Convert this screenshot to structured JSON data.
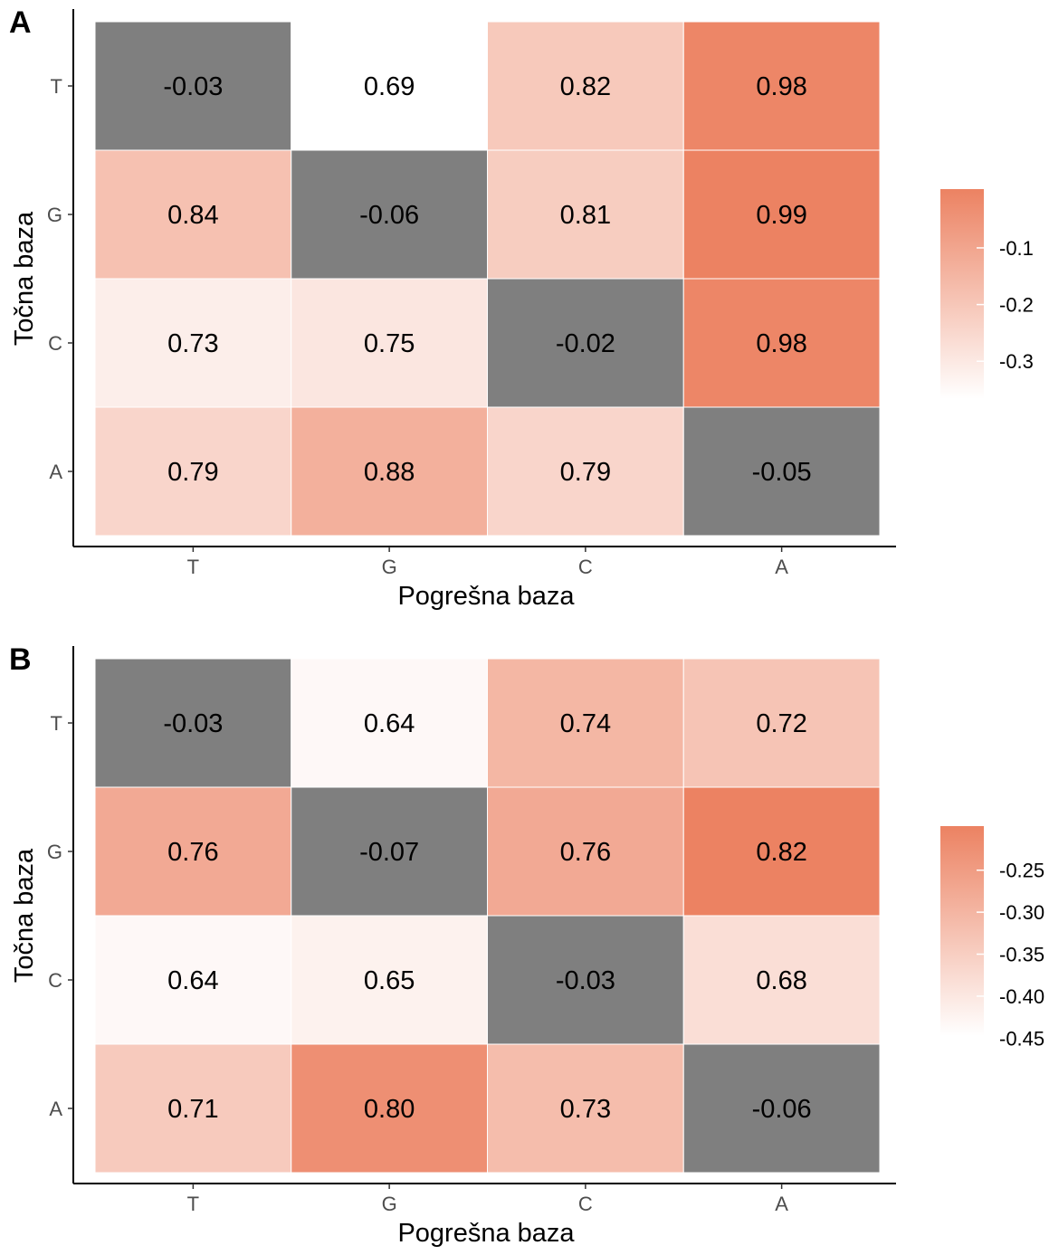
{
  "chart_data": [
    {
      "type": "heatmap",
      "panel_label": "A",
      "xlabel": "Pogrešna baza",
      "ylabel": "Točna baza",
      "x_categories": [
        "T",
        "G",
        "C",
        "A"
      ],
      "y_categories": [
        "T",
        "G",
        "C",
        "A"
      ],
      "values": [
        [
          -0.03,
          0.69,
          0.82,
          0.98
        ],
        [
          0.84,
          -0.06,
          0.81,
          0.99
        ],
        [
          0.73,
          0.75,
          -0.02,
          0.98
        ],
        [
          0.79,
          0.88,
          0.79,
          -0.05
        ]
      ],
      "value_labels": [
        [
          "-0.03",
          "0.69",
          "0.82",
          "0.98"
        ],
        [
          "0.84",
          "-0.06",
          "0.81",
          "0.99"
        ],
        [
          "0.73",
          "0.75",
          "-0.02",
          "0.98"
        ],
        [
          "0.79",
          "0.88",
          "0.79",
          "-0.05"
        ]
      ],
      "color_range": [
        0.69,
        0.99
      ],
      "negative_color": "#7f7f7f",
      "low_color": "#ffffff",
      "high_color": "#ec8262",
      "legend": {
        "position": "right",
        "ticks": [
          "-0.1",
          "-0.2",
          "-0.3"
        ],
        "tick_fractions": [
          0.72,
          0.45,
          0.18
        ]
      },
      "grid": false
    },
    {
      "type": "heatmap",
      "panel_label": "B",
      "xlabel": "Pogrešna baza",
      "ylabel": "Točna baza",
      "x_categories": [
        "T",
        "G",
        "C",
        "A"
      ],
      "y_categories": [
        "T",
        "G",
        "C",
        "A"
      ],
      "values": [
        [
          -0.03,
          0.64,
          0.74,
          0.72
        ],
        [
          0.76,
          -0.07,
          0.76,
          0.82
        ],
        [
          0.64,
          0.65,
          -0.03,
          0.68
        ],
        [
          0.71,
          0.8,
          0.73,
          -0.06
        ]
      ],
      "value_labels": [
        [
          "-0.03",
          "0.64",
          "0.74",
          "0.72"
        ],
        [
          "0.76",
          "-0.07",
          "0.76",
          "0.82"
        ],
        [
          "0.64",
          "0.65",
          "-0.03",
          "0.68"
        ],
        [
          "0.71",
          "0.80",
          "0.73",
          "-0.06"
        ]
      ],
      "color_range": [
        0.63,
        0.82
      ],
      "negative_color": "#7f7f7f",
      "low_color": "#ffffff",
      "high_color": "#ec8262",
      "legend": {
        "position": "right",
        "ticks": [
          "-0.25",
          "-0.30",
          "-0.35",
          "-0.40",
          "-0.45"
        ],
        "tick_fractions": [
          0.79,
          0.59,
          0.39,
          0.19,
          -0.01
        ]
      },
      "grid": false
    }
  ]
}
